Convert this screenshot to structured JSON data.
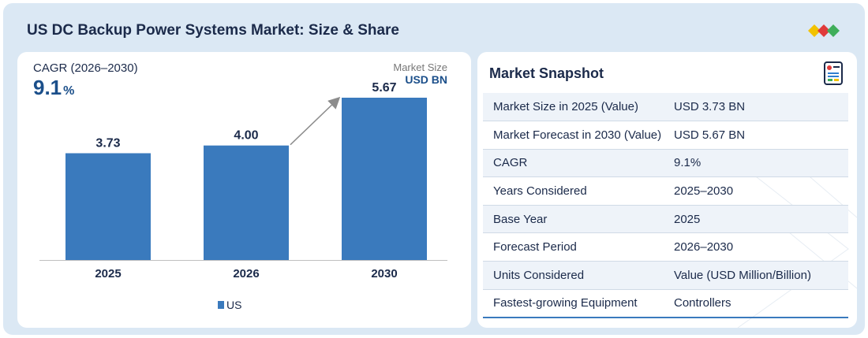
{
  "header": {
    "title": "US DC Backup Power Systems Market: Size & Share"
  },
  "colors": {
    "bar": "#3a7abd",
    "accent": "#1b4f8a",
    "logo_yellow": "#f2c200",
    "logo_red": "#e03a3a",
    "logo_green": "#3fae5a",
    "logo_blue": "#2f7fd0"
  },
  "cagr": {
    "label": "CAGR (2026–2030)",
    "value": "9.1",
    "unit": "%"
  },
  "market_size": {
    "label": "Market Size",
    "unit": "USD BN"
  },
  "chart_data": {
    "type": "bar",
    "categories": [
      "2025",
      "2026",
      "2030"
    ],
    "series": [
      {
        "name": "US",
        "values": [
          3.73,
          4.0,
          5.67
        ]
      }
    ],
    "value_labels": [
      "3.73",
      "4.00",
      "5.67"
    ],
    "title": "",
    "xlabel": "",
    "ylabel": "",
    "ylim": [
      0,
      5.67
    ],
    "grid": false,
    "legend": "bottom-center"
  },
  "snapshot": {
    "title": "Market Snapshot",
    "rows": [
      {
        "key": "Market Size in 2025 (Value)",
        "value": "USD 3.73 BN"
      },
      {
        "key": "Market Forecast in 2030 (Value)",
        "value": "USD 5.67 BN"
      },
      {
        "key": "CAGR",
        "value": "9.1%"
      },
      {
        "key": "Years Considered",
        "value": "2025–2030"
      },
      {
        "key": "Base Year",
        "value": "2025"
      },
      {
        "key": "Forecast Period",
        "value": "2026–2030"
      },
      {
        "key": "Units Considered",
        "value": "Value (USD Million/Billion)"
      },
      {
        "key": "Fastest-growing Equipment",
        "value": "Controllers"
      }
    ]
  }
}
